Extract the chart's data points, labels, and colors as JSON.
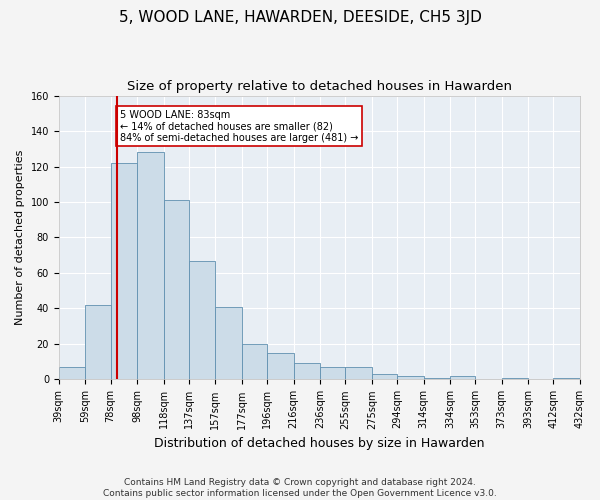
{
  "title": "5, WOOD LANE, HAWARDEN, DEESIDE, CH5 3JD",
  "subtitle": "Size of property relative to detached houses in Hawarden",
  "xlabel": "Distribution of detached houses by size in Hawarden",
  "ylabel": "Number of detached properties",
  "bar_color": "#ccdce8",
  "bar_edge_color": "#6090b0",
  "background_color": "#e8eef4",
  "fig_background_color": "#f4f4f4",
  "grid_color": "#ffffff",
  "property_line_x": 83,
  "property_line_color": "#cc0000",
  "annotation_text": "5 WOOD LANE: 83sqm\n← 14% of detached houses are smaller (82)\n84% of semi-detached houses are larger (481) →",
  "annotation_box_color": "#ffffff",
  "annotation_box_edge_color": "#cc0000",
  "footer_text": "Contains HM Land Registry data © Crown copyright and database right 2024.\nContains public sector information licensed under the Open Government Licence v3.0.",
  "bins": [
    39,
    59,
    78,
    98,
    118,
    137,
    157,
    177,
    196,
    216,
    236,
    255,
    275,
    294,
    314,
    334,
    353,
    373,
    393,
    412,
    432
  ],
  "bar_heights": [
    7,
    42,
    122,
    128,
    101,
    67,
    41,
    20,
    15,
    9,
    7,
    7,
    3,
    2,
    1,
    2,
    0,
    1,
    0,
    1,
    1
  ],
  "ylim": [
    0,
    160
  ],
  "yticks": [
    0,
    20,
    40,
    60,
    80,
    100,
    120,
    140,
    160
  ],
  "title_fontsize": 11,
  "subtitle_fontsize": 9.5,
  "ylabel_fontsize": 8,
  "xlabel_fontsize": 9,
  "tick_fontsize": 7,
  "footer_fontsize": 6.5
}
